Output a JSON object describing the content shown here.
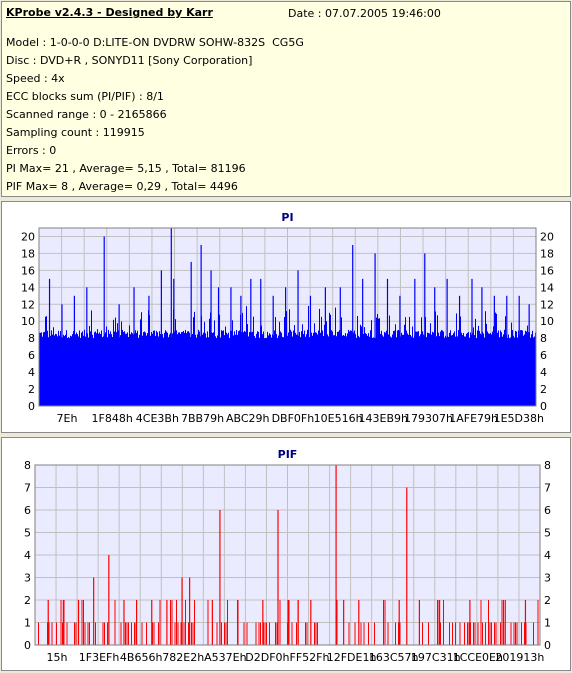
{
  "info": {
    "title": "KProbe v2.4.3 - Designed by Karr",
    "date": "Date : 07.07.2005 19:46:00",
    "lines": [
      "Model : 1-0-0-0 D:LITE-ON DVDRW SOHW-832S  CG5G",
      "Disc : DVD+R , SONYD11 [Sony Corporation]",
      "Speed : 4x",
      "ECC blocks sum (PI/PIF) : 8/1",
      "Scanned range : 0 - 2165866",
      "Sampling count : 119915",
      "Errors : 0",
      "PI Max= 21 , Average= 5,15 , Total= 81196",
      "PIF Max= 8 , Average= 0,29 , Total= 4496"
    ]
  },
  "colors": {
    "pi_bar": "#0000ff",
    "pif_bar": "#ff0000",
    "plot_bg": "#ebebff",
    "grid": "#c0c0c0",
    "title_color": "#000080",
    "info_bg": "#ffffe1"
  },
  "chart_data": [
    {
      "type": "bar",
      "title": "PI",
      "xlabel": "",
      "ylabel": "",
      "x_tick_labels": [
        "7Eh",
        "1F848h",
        "4CE3Bh",
        "7BB79h",
        "ABC29h",
        "DBF0Fh",
        "10E516h",
        "143EB9h",
        "179307h",
        "1AFE79h",
        "1E5D38h"
      ],
      "ylim": [
        0,
        21
      ],
      "y_ticks": [
        0,
        2,
        4,
        6,
        8,
        10,
        12,
        14,
        16,
        18,
        20
      ],
      "grid": true,
      "sample_count": 119915,
      "max": 21,
      "average": 5.15,
      "total": 81196,
      "baseline_band": [
        8,
        9
      ],
      "peaks": [
        {
          "pos": 0.02,
          "value": 15
        },
        {
          "pos": 0.045,
          "value": 12
        },
        {
          "pos": 0.07,
          "value": 13
        },
        {
          "pos": 0.095,
          "value": 14
        },
        {
          "pos": 0.13,
          "value": 20
        },
        {
          "pos": 0.16,
          "value": 12
        },
        {
          "pos": 0.19,
          "value": 14
        },
        {
          "pos": 0.22,
          "value": 13
        },
        {
          "pos": 0.245,
          "value": 16
        },
        {
          "pos": 0.27,
          "value": 15
        },
        {
          "pos": 0.305,
          "value": 17
        },
        {
          "pos": 0.325,
          "value": 19
        },
        {
          "pos": 0.345,
          "value": 16
        },
        {
          "pos": 0.36,
          "value": 14
        },
        {
          "pos": 0.385,
          "value": 14
        },
        {
          "pos": 0.405,
          "value": 13
        },
        {
          "pos": 0.425,
          "value": 15
        },
        {
          "pos": 0.445,
          "value": 15
        },
        {
          "pos": 0.47,
          "value": 13
        },
        {
          "pos": 0.495,
          "value": 14
        },
        {
          "pos": 0.52,
          "value": 16
        },
        {
          "pos": 0.545,
          "value": 13
        },
        {
          "pos": 0.575,
          "value": 14
        },
        {
          "pos": 0.605,
          "value": 14
        },
        {
          "pos": 0.63,
          "value": 19
        },
        {
          "pos": 0.65,
          "value": 15
        },
        {
          "pos": 0.675,
          "value": 18
        },
        {
          "pos": 0.7,
          "value": 15
        },
        {
          "pos": 0.725,
          "value": 13
        },
        {
          "pos": 0.755,
          "value": 15
        },
        {
          "pos": 0.775,
          "value": 18
        },
        {
          "pos": 0.795,
          "value": 14
        },
        {
          "pos": 0.82,
          "value": 15
        },
        {
          "pos": 0.845,
          "value": 13
        },
        {
          "pos": 0.87,
          "value": 15
        },
        {
          "pos": 0.89,
          "value": 14
        },
        {
          "pos": 0.915,
          "value": 13
        },
        {
          "pos": 0.94,
          "value": 13
        },
        {
          "pos": 0.965,
          "value": 13
        },
        {
          "pos": 0.985,
          "value": 12
        },
        {
          "pos": 0.265,
          "value": 21
        }
      ]
    },
    {
      "type": "bar",
      "title": "PIF",
      "xlabel": "",
      "ylabel": "",
      "x_tick_labels": [
        "15h",
        "1F3EFh",
        "4B656h",
        "782E2h",
        "A537Eh",
        "D2DF0h",
        "FF52Fh",
        "12FDE1h",
        "163C57h",
        "197C31h",
        "1CCE0Eh",
        "201913h"
      ],
      "ylim": [
        0,
        8
      ],
      "y_ticks": [
        0,
        1,
        2,
        3,
        4,
        5,
        6,
        7,
        8
      ],
      "grid": true,
      "sample_count": 119915,
      "max": 8,
      "average": 0.29,
      "total": 4496,
      "spikes": [
        {
          "pos": 0.025,
          "value": 2
        },
        {
          "pos": 0.055,
          "value": 2
        },
        {
          "pos": 0.085,
          "value": 2
        },
        {
          "pos": 0.115,
          "value": 3
        },
        {
          "pos": 0.145,
          "value": 4
        },
        {
          "pos": 0.175,
          "value": 2
        },
        {
          "pos": 0.2,
          "value": 2
        },
        {
          "pos": 0.23,
          "value": 2
        },
        {
          "pos": 0.26,
          "value": 2
        },
        {
          "pos": 0.29,
          "value": 3
        },
        {
          "pos": 0.305,
          "value": 3
        },
        {
          "pos": 0.35,
          "value": 2
        },
        {
          "pos": 0.365,
          "value": 6
        },
        {
          "pos": 0.4,
          "value": 2
        },
        {
          "pos": 0.45,
          "value": 2
        },
        {
          "pos": 0.48,
          "value": 6
        },
        {
          "pos": 0.5,
          "value": 2
        },
        {
          "pos": 0.52,
          "value": 2
        },
        {
          "pos": 0.545,
          "value": 2
        },
        {
          "pos": 0.595,
          "value": 8
        },
        {
          "pos": 0.61,
          "value": 2
        },
        {
          "pos": 0.64,
          "value": 2
        },
        {
          "pos": 0.72,
          "value": 2
        },
        {
          "pos": 0.735,
          "value": 7
        },
        {
          "pos": 0.76,
          "value": 2
        },
        {
          "pos": 0.8,
          "value": 2
        },
        {
          "pos": 0.86,
          "value": 2
        },
        {
          "pos": 0.93,
          "value": 2
        },
        {
          "pos": 0.97,
          "value": 2
        }
      ]
    }
  ]
}
